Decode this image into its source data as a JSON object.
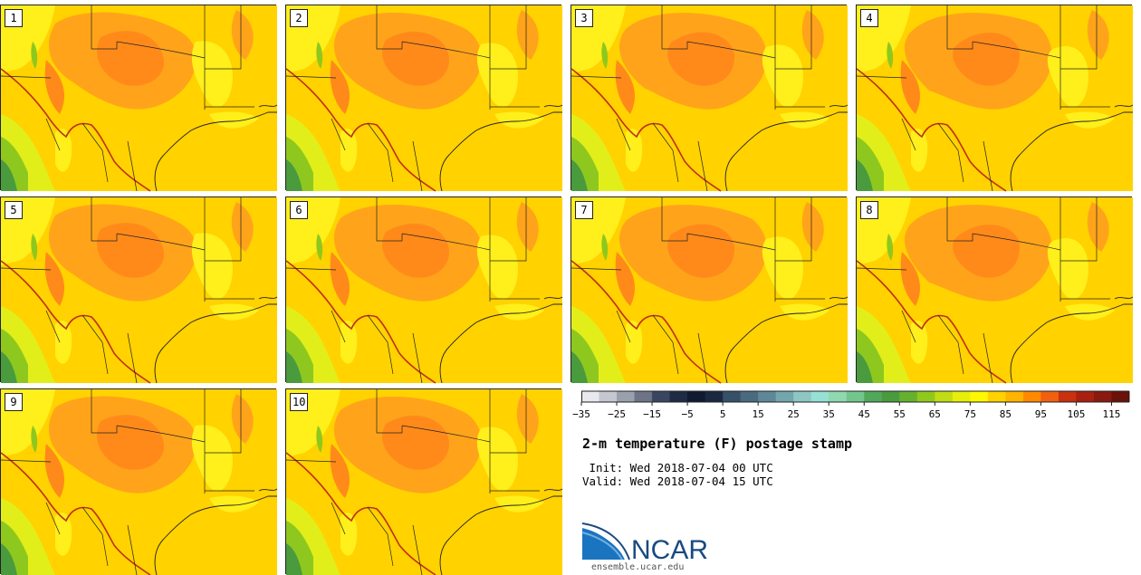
{
  "title": "2-m temperature (F) postage stamp",
  "init_label": " Init: Wed 2018-07-04 00 UTC",
  "valid_label": "Valid: Wed 2018-07-04 15 UTC",
  "logo_text": "NCAR",
  "site": "ensemble.ucar.edu",
  "members": [
    "1",
    "2",
    "3",
    "4",
    "5",
    "6",
    "7",
    "8",
    "9",
    "10"
  ],
  "colorbar": {
    "min": -35,
    "max": 120,
    "step": 5,
    "ticks": [
      -35,
      -25,
      -15,
      -5,
      5,
      15,
      25,
      35,
      45,
      55,
      65,
      75,
      85,
      95,
      105,
      115
    ],
    "tick_labels": [
      "−35",
      "−25",
      "−15",
      "−5",
      "5",
      "15",
      "25",
      "35",
      "45",
      "55",
      "65",
      "75",
      "85",
      "95",
      "105",
      "115"
    ],
    "colors": [
      "#e8e8ef",
      "#c4c6d0",
      "#9ba0ad",
      "#6c7485",
      "#3a4660",
      "#1f2a44",
      "#101a30",
      "#1b2840",
      "#36506a",
      "#4a6a80",
      "#5e8898",
      "#74a6ae",
      "#8ec6c4",
      "#96e0d4",
      "#8fd8b0",
      "#72c68c",
      "#52a85a",
      "#4a9a3e",
      "#66b030",
      "#90c81e",
      "#c0dc14",
      "#e6ee0a",
      "#fff800",
      "#ffd200",
      "#ffb400",
      "#ff8a00",
      "#f06010",
      "#c83010",
      "#a82010",
      "#8a1a10",
      "#6a1208"
    ]
  },
  "colors": {
    "base": "#ffd200",
    "hot": "#ffa41a",
    "hotter": "#ff8a1a",
    "mild": "#ffef1a",
    "cool": "#e2ee1a",
    "green": "#8ec81e",
    "green_dark": "#4a9a3e",
    "border": "#222222",
    "river": "#c03010"
  }
}
